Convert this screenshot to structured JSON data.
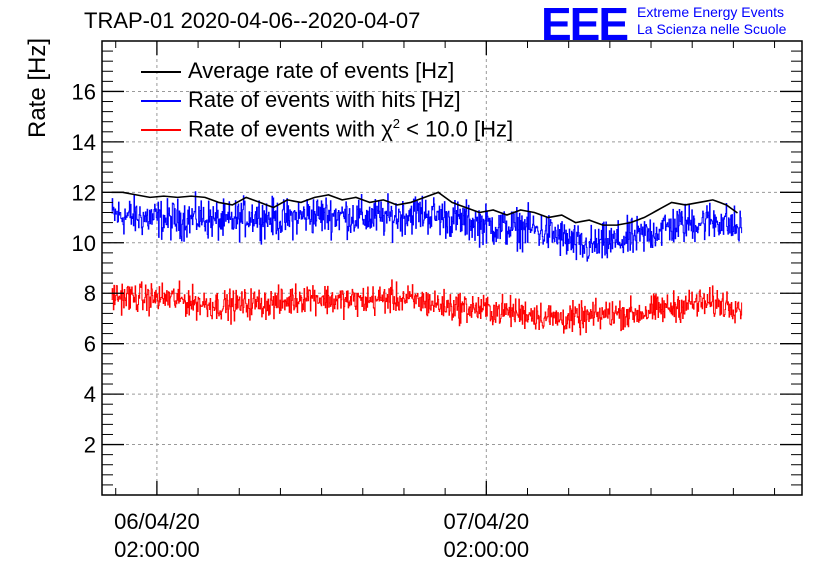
{
  "header": {
    "title": "TRAP-01 2020-04-06--2020-04-07",
    "logo": "EEE",
    "logo_line1": "Extreme Energy Events",
    "logo_line2": "La Scienza nelle Scuole"
  },
  "colors": {
    "average": "#000000",
    "hits": "#0000ff",
    "chi2": "#ff0000",
    "grid": "#9a9a9a"
  },
  "chart_data": {
    "type": "line",
    "title": "TRAP-01 2020-04-06--2020-04-07",
    "ylabel": "Rate [Hz]",
    "xlabel": "",
    "ylim": [
      0,
      18
    ],
    "yticks": [
      2,
      4,
      6,
      8,
      10,
      12,
      14,
      16
    ],
    "grid": true,
    "legend_position": "top-left",
    "x_unit": "hours since 2020-04-05 22:00",
    "xlim": [
      0,
      51
    ],
    "x_major_ticks": [
      {
        "x": 4,
        "label_date": "06/04/20",
        "label_time": "02:00:00"
      },
      {
        "x": 28,
        "label_date": "07/04/20",
        "label_time": "02:00:00"
      }
    ],
    "series": [
      {
        "name": "Average rate of events [Hz]",
        "name_prefix": "Average rate of events [Hz]",
        "name_sup": "",
        "name_suffix": "",
        "style": "smooth",
        "x": [
          0.7,
          1.5,
          2.5,
          3.5,
          4.5,
          5.5,
          6.5,
          7.5,
          8.5,
          9.5,
          10.5,
          11.5,
          12.5,
          13.5,
          14.5,
          15.5,
          16.5,
          17.5,
          18.5,
          19.5,
          20.5,
          21.5,
          22.5,
          23.5,
          24.5,
          25.5,
          26.5,
          27.5,
          28.5,
          29.5,
          30.5,
          31.5,
          32.5,
          33.5,
          34.5,
          35.5,
          36.5,
          37.5,
          38.5,
          39.5,
          40.5,
          41.5,
          42.5,
          43.5,
          44.5,
          45.5,
          46.5
        ],
        "values": [
          12.0,
          12.0,
          11.9,
          11.8,
          11.85,
          11.8,
          11.85,
          11.8,
          11.6,
          11.5,
          11.8,
          11.6,
          11.4,
          11.7,
          11.6,
          11.8,
          11.9,
          11.7,
          11.8,
          11.6,
          11.7,
          11.5,
          11.6,
          11.8,
          12.0,
          11.6,
          11.4,
          11.2,
          11.3,
          11.1,
          11.3,
          11.2,
          11.0,
          11.1,
          10.8,
          10.9,
          10.7,
          10.7,
          10.8,
          11.0,
          11.3,
          11.6,
          11.5,
          11.6,
          11.7,
          11.5,
          11.1
        ]
      },
      {
        "name": "Rate of events with hits [Hz]",
        "name_prefix": "Rate of events with hits [Hz]",
        "name_sup": "",
        "name_suffix": "",
        "style": "noisy",
        "amplitude": 0.55,
        "x": [
          0.7,
          3,
          5,
          7,
          9,
          11,
          13,
          15,
          17,
          19,
          21,
          23,
          25,
          27,
          29,
          31,
          33,
          35,
          37,
          39,
          41,
          43,
          45,
          46.6
        ],
        "values": [
          11.1,
          11.0,
          10.9,
          11.0,
          10.8,
          11.1,
          10.9,
          11.1,
          11.1,
          11.0,
          11.0,
          11.2,
          11.0,
          10.8,
          10.6,
          10.6,
          10.3,
          9.8,
          10.0,
          10.2,
          10.6,
          10.8,
          10.9,
          10.5
        ]
      },
      {
        "name": "Rate of events with χ2 < 10.0 [Hz]",
        "name_prefix": "Rate of events with χ",
        "name_sup": "2",
        "name_suffix": " < 10.0 [Hz]",
        "style": "noisy",
        "amplitude": 0.42,
        "x": [
          0.7,
          3,
          5,
          7,
          9,
          11,
          13,
          15,
          17,
          19,
          21,
          23,
          25,
          27,
          29,
          31,
          33,
          35,
          37,
          39,
          41,
          43,
          45,
          46.6
        ],
        "values": [
          7.9,
          7.8,
          7.8,
          7.6,
          7.5,
          7.6,
          7.6,
          7.9,
          7.7,
          7.7,
          7.8,
          7.7,
          7.5,
          7.4,
          7.3,
          7.2,
          7.0,
          7.0,
          7.2,
          7.2,
          7.4,
          7.6,
          7.6,
          7.5
        ]
      }
    ]
  }
}
